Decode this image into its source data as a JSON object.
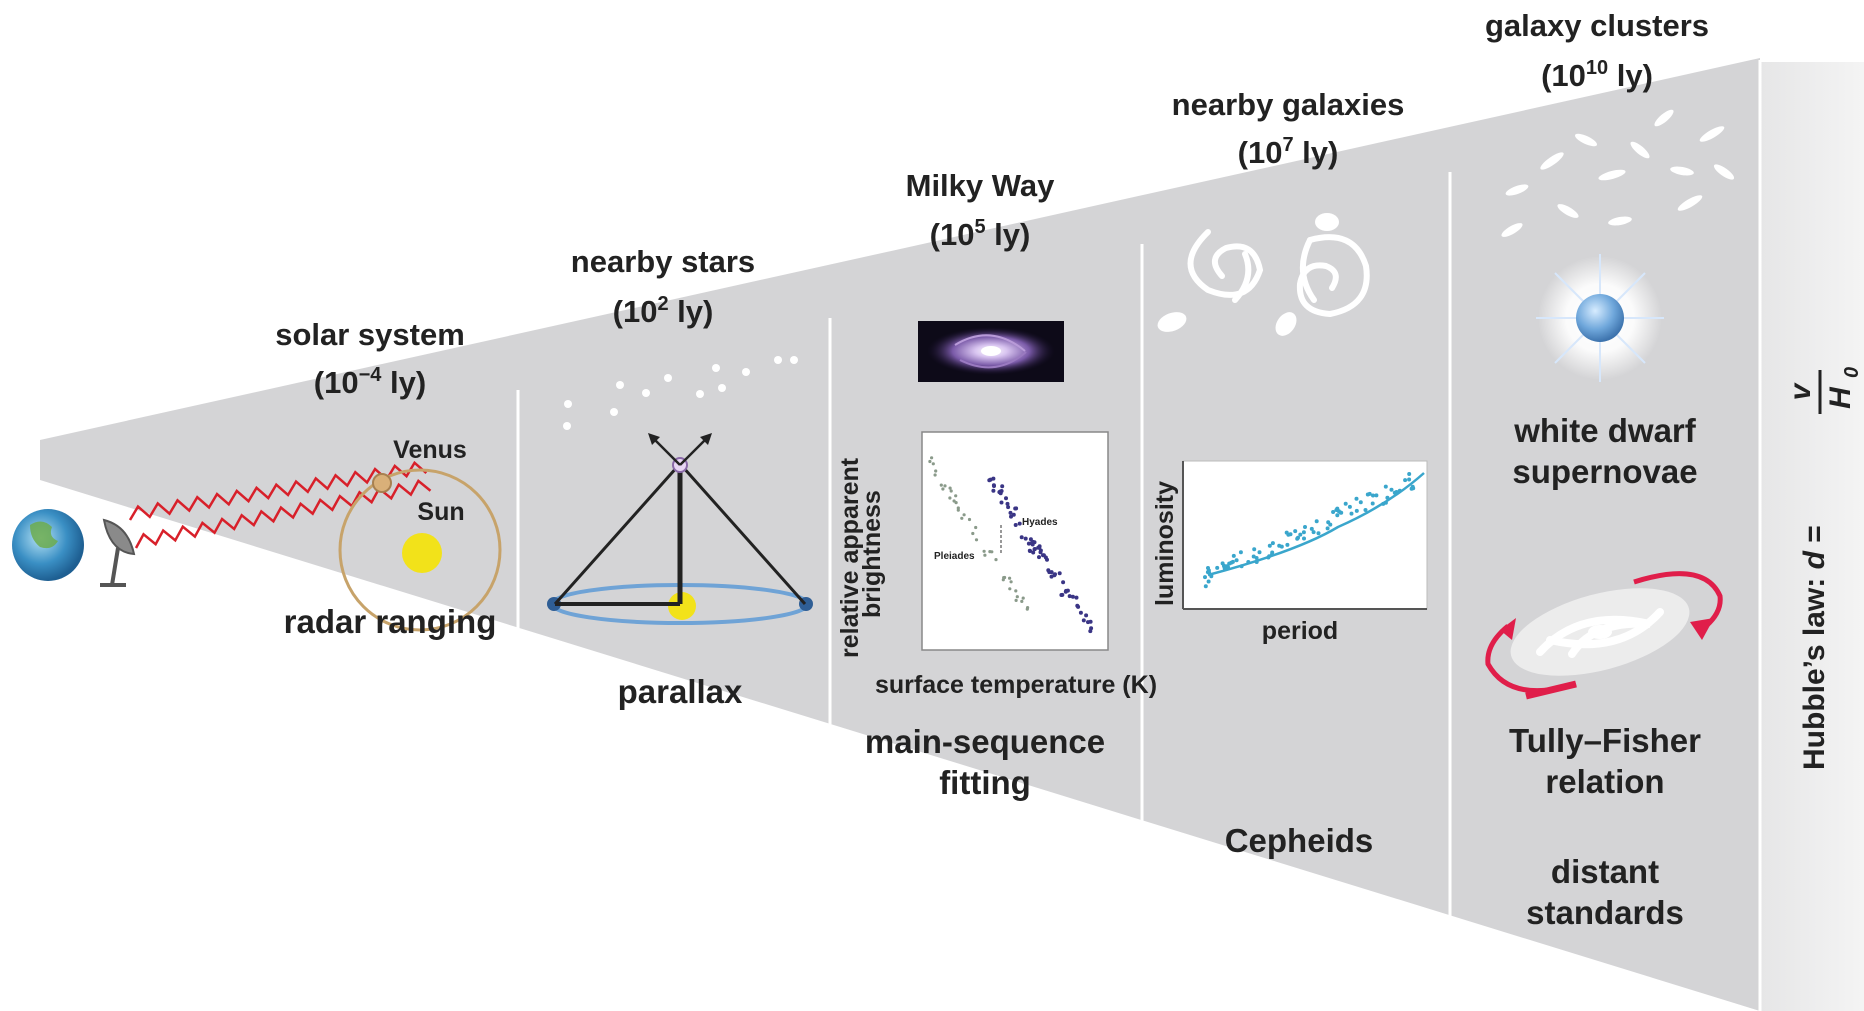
{
  "regions": [
    {
      "id": "solar",
      "title": "solar system",
      "scale_base": "(10",
      "scale_exp": "−4",
      "scale_unit": " ly)",
      "methods": [
        "radar ranging"
      ]
    },
    {
      "id": "stars",
      "title": "nearby stars",
      "scale_base": "(10",
      "scale_exp": "2",
      "scale_unit": " ly)",
      "methods": [
        "parallax"
      ]
    },
    {
      "id": "milkyway",
      "title": "Milky Way",
      "scale_base": "(10",
      "scale_exp": "5",
      "scale_unit": " ly)",
      "methods": [
        "main-sequence",
        "fitting"
      ]
    },
    {
      "id": "galaxies",
      "title": "nearby galaxies",
      "scale_base": "(10",
      "scale_exp": "7",
      "scale_unit": " ly)",
      "methods": [
        "Cepheids"
      ]
    },
    {
      "id": "clusters",
      "title": "galaxy clusters",
      "scale_base": "(10",
      "scale_exp": "10",
      "scale_unit": " ly)",
      "methods": [
        "white dwarf",
        "supernovae",
        "Tully–Fisher",
        "relation",
        "distant",
        "standards"
      ]
    }
  ],
  "solar_labels": {
    "venus": "Venus",
    "sun": "Sun"
  },
  "hr_diagram": {
    "ylabel_line1": "relative apparent",
    "ylabel_line2": "brightness",
    "xlabel": "surface temperature (K)",
    "cluster_a": "Hyades",
    "cluster_b": "Pleiades"
  },
  "cepheid_plot": {
    "ylabel": "luminosity",
    "xlabel": "period"
  },
  "hubble": {
    "prefix": "Hubble’s law: ",
    "d": "d",
    "equals": " = ",
    "numerator": "v",
    "denominator": "H",
    "subscript": "0"
  },
  "colors": {
    "panel": "#d4d4d6",
    "divider": "#ffffff",
    "radar": "#d8202a",
    "sun": "#f2e21a",
    "cepheid": "#3aa6cc",
    "rotation_arrow": "#e01e4a",
    "hr_points": "#3a3585"
  }
}
